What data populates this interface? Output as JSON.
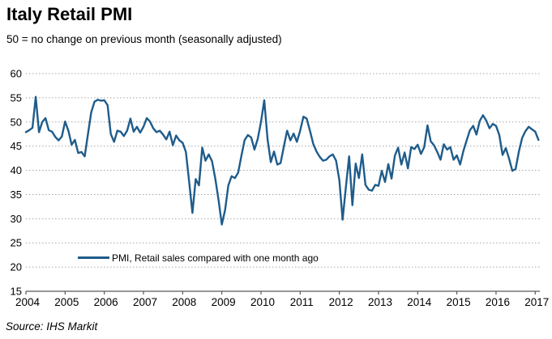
{
  "header": {
    "title": "Italy Retail PMI",
    "subtitle": "50 = no change on previous month (seasonally adjusted)"
  },
  "footer": {
    "source": "Source: IHS Markit"
  },
  "colors": {
    "line": "#1f5c8b",
    "grid": "#a6a6a6",
    "axis": "#595959",
    "text": "#000000"
  },
  "chart_data": {
    "type": "line",
    "title": "Italy Retail PMI",
    "subtitle": "50 = no change on previous month (seasonally adjusted)",
    "xlabel": "",
    "ylabel": "",
    "ylim": [
      15,
      60
    ],
    "yticks": [
      60,
      55,
      50,
      45,
      40,
      35,
      30,
      25,
      20,
      15
    ],
    "xticks": [
      "2004",
      "2005",
      "2006",
      "2007",
      "2008",
      "2009",
      "2010",
      "2011",
      "2012",
      "2013",
      "2014",
      "2015",
      "2016",
      "2017"
    ],
    "grid": "horizontal-dotted",
    "legend_position": "inside-bottom-left",
    "legend": [
      {
        "label": "PMI, Retail sales compared with one month ago",
        "color": "#1f5c8b"
      }
    ],
    "series": [
      {
        "name": "PMI, Retail sales compared with one month ago",
        "frequency": "monthly",
        "start": "2004-01",
        "end": "2017-02",
        "values": [
          47.9,
          48.3,
          48.8,
          55.2,
          47.9,
          50.0,
          50.8,
          48.3,
          48.0,
          46.9,
          46.2,
          47.0,
          50.1,
          48.2,
          45.3,
          46.3,
          43.6,
          43.8,
          42.9,
          47.5,
          52.0,
          54.2,
          54.6,
          54.4,
          54.5,
          53.5,
          47.5,
          45.9,
          48.2,
          48.0,
          47.1,
          48.2,
          50.7,
          48.0,
          49.0,
          47.8,
          49.0,
          50.8,
          50.1,
          48.7,
          47.9,
          48.2,
          47.4,
          46.4,
          48.0,
          45.2,
          47.2,
          46.2,
          45.7,
          43.8,
          37.6,
          31.2,
          38.2,
          36.9,
          44.7,
          42.0,
          43.3,
          41.9,
          38.3,
          33.9,
          28.8,
          31.8,
          36.9,
          38.8,
          38.4,
          39.5,
          43.0,
          46.3,
          47.3,
          46.8,
          44.3,
          46.5,
          50.0,
          54.5,
          46.5,
          41.7,
          43.9,
          41.2,
          41.5,
          44.9,
          48.2,
          46.2,
          47.6,
          45.9,
          48.2,
          51.1,
          50.7,
          48.2,
          45.5,
          43.9,
          42.8,
          42.0,
          42.2,
          42.9,
          43.3,
          42.0,
          38.0,
          29.8,
          36.5,
          42.9,
          32.8,
          41.4,
          38.4,
          43.3,
          37.0,
          36.0,
          35.8,
          37.0,
          36.8,
          39.9,
          37.6,
          41.3,
          38.3,
          43.0,
          44.7,
          41.2,
          43.7,
          40.4,
          44.8,
          44.4,
          45.3,
          43.4,
          44.8,
          49.3,
          46.0,
          45.2,
          43.8,
          42.2,
          45.4,
          44.3,
          44.8,
          42.2,
          43.1,
          41.2,
          44.0,
          46.2,
          48.3,
          49.2,
          47.4,
          50.2,
          51.4,
          50.3,
          48.7,
          49.6,
          49.2,
          47.3,
          43.2,
          44.6,
          42.4,
          39.9,
          40.3,
          43.9,
          46.7,
          48.1,
          49.0,
          48.5,
          48.0,
          46.3
        ]
      }
    ]
  }
}
